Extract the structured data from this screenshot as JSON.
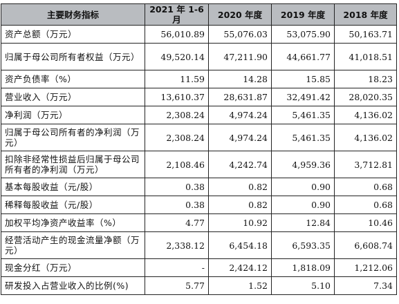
{
  "table": {
    "headers": [
      "主要财务指标",
      "2021 年 1-6 月",
      "2020 年度",
      "2019 年度",
      "2018 年度"
    ],
    "rows": [
      {
        "label": "资产总额（万元）",
        "values": [
          "56,010.89",
          "55,076.03",
          "53,075.90",
          "50,163.71"
        ]
      },
      {
        "label": "归属于母公司所有者权益（万元）",
        "values": [
          "49,520.14",
          "47,211.90",
          "44,661.77",
          "41,018.51"
        ]
      },
      {
        "label": "资产负债率（%）",
        "values": [
          "11.59",
          "14.28",
          "15.85",
          "18.23"
        ]
      },
      {
        "label": "营业收入（万元）",
        "values": [
          "13,610.37",
          "28,631.87",
          "32,491.42",
          "28,020.35"
        ]
      },
      {
        "label": "净利润（万元）",
        "values": [
          "2,308.24",
          "4,974.24",
          "5,461.35",
          "4,136.02"
        ]
      },
      {
        "label": "归属于母公司所有者的净利润（万元）",
        "values": [
          "2,308.24",
          "4,974.24",
          "5,461.35",
          "4,136.02"
        ]
      },
      {
        "label": "扣除非经常性损益后归属于母公司所有者的净利润（万元）",
        "values": [
          "2,108.46",
          "4,242.74",
          "4,959.36",
          "3,712.81"
        ]
      },
      {
        "label": "基本每股收益（元/股）",
        "values": [
          "0.38",
          "0.82",
          "0.90",
          "0.68"
        ]
      },
      {
        "label": "稀释每股收益（元/股）",
        "values": [
          "0.38",
          "0.82",
          "0.90",
          "0.68"
        ]
      },
      {
        "label": "加权平均净资产收益率（%）",
        "values": [
          "4.77",
          "10.92",
          "12.84",
          "10.46"
        ]
      },
      {
        "label": "经营活动产生的现金流量净额（万元）",
        "values": [
          "2,338.12",
          "6,454.18",
          "6,593.35",
          "6,608.74"
        ]
      },
      {
        "label": "现金分红（万元）",
        "values": [
          "-",
          "2,424.12",
          "1,818.09",
          "1,212.06"
        ]
      },
      {
        "label": "研发投入占营业收入的比例(%)",
        "values": [
          "5.77",
          "1.52",
          "5.10",
          "7.34"
        ]
      }
    ]
  }
}
